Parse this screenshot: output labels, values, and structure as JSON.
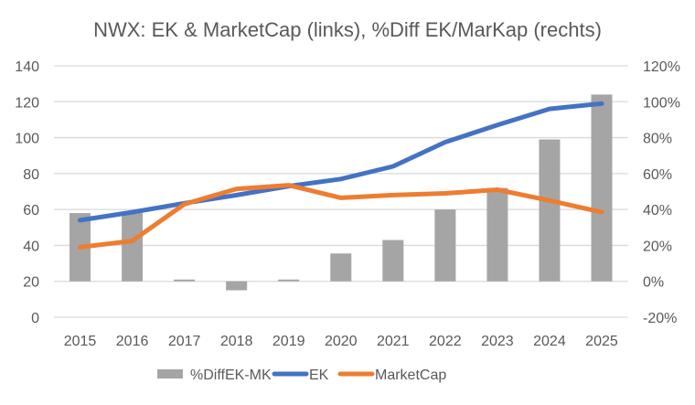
{
  "chart_data": {
    "type": "bar",
    "title": "NWX: EK & MarketCap (links), %Diff EK/MarKap (rechts)",
    "categories": [
      "2015",
      "2016",
      "2017",
      "2018",
      "2019",
      "2020",
      "2021",
      "2022",
      "2023",
      "2024",
      "2025"
    ],
    "left_axis": {
      "ylim": [
        0,
        140
      ],
      "ticks": [
        0,
        20,
        40,
        60,
        80,
        100,
        120,
        140
      ],
      "tick_labels": [
        "0",
        "20",
        "40",
        "60",
        "80",
        "100",
        "120",
        "140"
      ]
    },
    "right_axis": {
      "ylim": [
        -20,
        120
      ],
      "ticks": [
        -20,
        0,
        20,
        40,
        60,
        80,
        100,
        120
      ],
      "tick_labels": [
        "-20%",
        "0%",
        "20%",
        "40%",
        "60%",
        "80%",
        "100%",
        "120%"
      ]
    },
    "grid": true,
    "legend_position": "bottom",
    "series": [
      {
        "name": "%DiffEK-MK",
        "type": "bar",
        "axis": "right",
        "unit": "%",
        "color": "#a5a5a5",
        "values": [
          38,
          38,
          1,
          -5,
          1,
          15.5,
          23,
          40,
          52,
          79,
          104
        ]
      },
      {
        "name": "EK",
        "type": "line",
        "axis": "left",
        "color": "#4472c4",
        "values": [
          54,
          58.5,
          63.5,
          68,
          73,
          77,
          84,
          97.5,
          107,
          116,
          119
        ]
      },
      {
        "name": "MarketCap",
        "type": "line",
        "axis": "left",
        "color": "#ed7d31",
        "values": [
          39,
          42.5,
          63,
          71.5,
          73.5,
          66.5,
          68,
          69,
          71,
          65,
          58.5
        ]
      }
    ]
  }
}
